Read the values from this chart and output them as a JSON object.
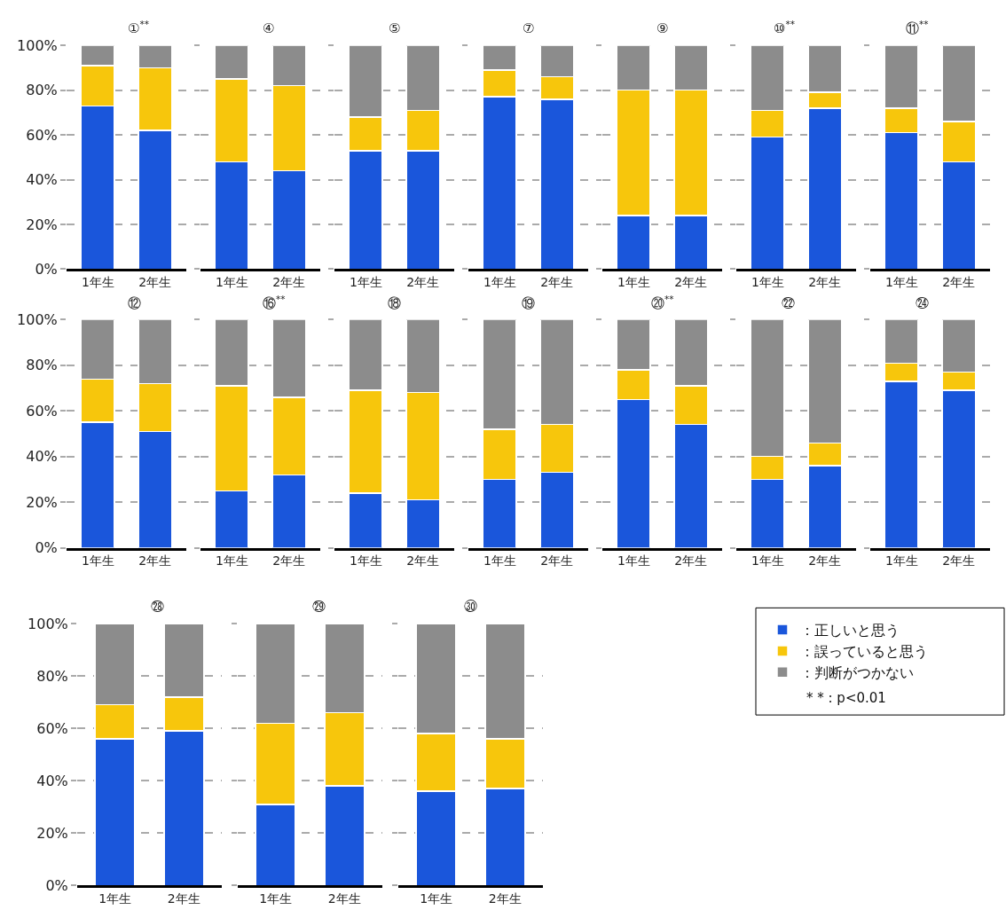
{
  "chart_data": [
    {
      "type": "bar",
      "title": "①$^{**}$",
      "categories": [
        "1年生",
        "2年生"
      ],
      "stacked": true,
      "ylim": [
        0,
        100
      ],
      "yticks": [
        {
          "value": 0,
          "label": "0%"
        },
        {
          "value": 20,
          "label": "20%"
        },
        {
          "value": 40,
          "label": "40%"
        },
        {
          "value": 60,
          "label": "60%"
        },
        {
          "value": 80,
          "label": "80%"
        },
        {
          "value": 100,
          "label": "100%"
        }
      ],
      "grid": "y",
      "series": [
        {
          "color": "#1a56db",
          "values": [
            73,
            62
          ]
        },
        {
          "color": "#f7c60c",
          "values": [
            18,
            28
          ]
        },
        {
          "color": "#8c8c8c",
          "values": [
            9,
            10
          ]
        }
      ]
    },
    {
      "type": "bar",
      "title": "④",
      "categories": [
        "1年生",
        "2年生"
      ],
      "stacked": true,
      "ylim": [
        0,
        100
      ],
      "yticks": [
        0,
        20,
        40,
        60,
        80,
        100
      ],
      "grid": "y",
      "tick_labels": "x",
      "series": [
        {
          "color": "#1a56db",
          "values": [
            48,
            44
          ]
        },
        {
          "color": "#f7c60c",
          "values": [
            37,
            38
          ]
        },
        {
          "color": "#8c8c8c",
          "values": [
            15,
            18
          ]
        }
      ]
    },
    {
      "type": "bar",
      "title": "⑤",
      "categories": [
        "1年生",
        "2年生"
      ],
      "stacked": true,
      "ylim": [
        0,
        100
      ],
      "yticks": [
        0,
        20,
        40,
        60,
        80,
        100
      ],
      "grid": "y",
      "tick_labels": "x",
      "series": [
        {
          "color": "#1a56db",
          "values": [
            53,
            53
          ]
        },
        {
          "color": "#f7c60c",
          "values": [
            15,
            18
          ]
        },
        {
          "color": "#8c8c8c",
          "values": [
            32,
            29
          ]
        }
      ]
    },
    {
      "type": "bar",
      "title": "⑦",
      "categories": [
        "1年生",
        "2年生"
      ],
      "stacked": true,
      "ylim": [
        0,
        100
      ],
      "yticks": [
        0,
        20,
        40,
        60,
        80,
        100
      ],
      "grid": "y",
      "tick_labels": "x",
      "series": [
        {
          "color": "#1a56db",
          "values": [
            77,
            76
          ]
        },
        {
          "color": "#f7c60c",
          "values": [
            12,
            10
          ]
        },
        {
          "color": "#8c8c8c",
          "values": [
            11,
            14
          ]
        }
      ]
    },
    {
      "type": "bar",
      "title": "⑨",
      "categories": [
        "1年生",
        "2年生"
      ],
      "stacked": true,
      "ylim": [
        0,
        100
      ],
      "yticks": [
        0,
        20,
        40,
        60,
        80,
        100
      ],
      "grid": "y",
      "tick_labels": "x",
      "series": [
        {
          "color": "#1a56db",
          "values": [
            24,
            24
          ]
        },
        {
          "color": "#f7c60c",
          "values": [
            56,
            56
          ]
        },
        {
          "color": "#8c8c8c",
          "values": [
            20,
            20
          ]
        }
      ]
    },
    {
      "type": "bar",
      "title": "⑩$^{**}$",
      "categories": [
        "1年生",
        "2年生"
      ],
      "stacked": true,
      "ylim": [
        0,
        100
      ],
      "yticks": [
        0,
        20,
        40,
        60,
        80,
        100
      ],
      "grid": "y",
      "tick_labels": "x",
      "series": [
        {
          "color": "#1a56db",
          "values": [
            59,
            72
          ]
        },
        {
          "color": "#f7c60c",
          "values": [
            12,
            7
          ]
        },
        {
          "color": "#8c8c8c",
          "values": [
            29,
            21
          ]
        }
      ]
    },
    {
      "type": "bar",
      "title": "⑪$^{**}$",
      "categories": [
        "1年生",
        "2年生"
      ],
      "stacked": true,
      "ylim": [
        0,
        100
      ],
      "yticks": [
        0,
        20,
        40,
        60,
        80,
        100
      ],
      "grid": "y",
      "tick_labels": "x",
      "series": [
        {
          "color": "#1a56db",
          "values": [
            61,
            48
          ]
        },
        {
          "color": "#f7c60c",
          "values": [
            11,
            18
          ]
        },
        {
          "color": "#8c8c8c",
          "values": [
            28,
            34
          ]
        }
      ]
    },
    {
      "type": "bar",
      "title": "⑫",
      "categories": [
        "1年生",
        "2年生"
      ],
      "stacked": true,
      "ylim": [
        0,
        100
      ],
      "yticks": [
        {
          "value": 0,
          "label": "0%"
        },
        {
          "value": 20,
          "label": "20%"
        },
        {
          "value": 40,
          "label": "40%"
        },
        {
          "value": 60,
          "label": "60%"
        },
        {
          "value": 80,
          "label": "80%"
        },
        {
          "value": 100,
          "label": "100%"
        }
      ],
      "grid": "y",
      "series": [
        {
          "color": "#1a56db",
          "values": [
            55,
            51
          ]
        },
        {
          "color": "#f7c60c",
          "values": [
            19,
            21
          ]
        },
        {
          "color": "#8c8c8c",
          "values": [
            26,
            28
          ]
        }
      ]
    },
    {
      "type": "bar",
      "title": "⑯$^{**}$",
      "categories": [
        "1年生",
        "2年生"
      ],
      "stacked": true,
      "ylim": [
        0,
        100
      ],
      "yticks": [
        0,
        20,
        40,
        60,
        80,
        100
      ],
      "grid": "y",
      "tick_labels": "x",
      "series": [
        {
          "color": "#1a56db",
          "values": [
            25,
            32
          ]
        },
        {
          "color": "#f7c60c",
          "values": [
            46,
            34
          ]
        },
        {
          "color": "#8c8c8c",
          "values": [
            29,
            34
          ]
        }
      ]
    },
    {
      "type": "bar",
      "title": "⑱",
      "categories": [
        "1年生",
        "2年生"
      ],
      "stacked": true,
      "ylim": [
        0,
        100
      ],
      "yticks": [
        0,
        20,
        40,
        60,
        80,
        100
      ],
      "grid": "y",
      "tick_labels": "x",
      "series": [
        {
          "color": "#1a56db",
          "values": [
            24,
            21
          ]
        },
        {
          "color": "#f7c60c",
          "values": [
            45,
            47
          ]
        },
        {
          "color": "#8c8c8c",
          "values": [
            31,
            32
          ]
        }
      ]
    },
    {
      "type": "bar",
      "title": "⑲",
      "categories": [
        "1年生",
        "2年生"
      ],
      "stacked": true,
      "ylim": [
        0,
        100
      ],
      "yticks": [
        0,
        20,
        40,
        60,
        80,
        100
      ],
      "grid": "y",
      "tick_labels": "x",
      "series": [
        {
          "color": "#1a56db",
          "values": [
            30,
            33
          ]
        },
        {
          "color": "#f7c60c",
          "values": [
            22,
            21
          ]
        },
        {
          "color": "#8c8c8c",
          "values": [
            48,
            46
          ]
        }
      ]
    },
    {
      "type": "bar",
      "title": "⑳$^{**}$",
      "categories": [
        "1年生",
        "2年生"
      ],
      "stacked": true,
      "ylim": [
        0,
        100
      ],
      "yticks": [
        0,
        20,
        40,
        60,
        80,
        100
      ],
      "grid": "y",
      "tick_labels": "x",
      "series": [
        {
          "color": "#1a56db",
          "values": [
            65,
            54
          ]
        },
        {
          "color": "#f7c60c",
          "values": [
            13,
            17
          ]
        },
        {
          "color": "#8c8c8c",
          "values": [
            22,
            29
          ]
        }
      ]
    },
    {
      "type": "bar",
      "title": "㉒",
      "categories": [
        "1年生",
        "2年生"
      ],
      "stacked": true,
      "ylim": [
        0,
        100
      ],
      "yticks": [
        0,
        20,
        40,
        60,
        80,
        100
      ],
      "grid": "y",
      "tick_labels": "x",
      "series": [
        {
          "color": "#1a56db",
          "values": [
            30,
            36
          ]
        },
        {
          "color": "#f7c60c",
          "values": [
            10,
            10
          ]
        },
        {
          "color": "#8c8c8c",
          "values": [
            60,
            54
          ]
        }
      ]
    },
    {
      "type": "bar",
      "title": "㉔",
      "categories": [
        "1年生",
        "2年生"
      ],
      "stacked": true,
      "ylim": [
        0,
        100
      ],
      "yticks": [
        0,
        20,
        40,
        60,
        80,
        100
      ],
      "grid": "y",
      "tick_labels": "x",
      "series": [
        {
          "color": "#1a56db",
          "values": [
            73,
            69
          ]
        },
        {
          "color": "#f7c60c",
          "values": [
            8,
            8
          ]
        },
        {
          "color": "#8c8c8c",
          "values": [
            19,
            23
          ]
        }
      ]
    },
    {
      "type": "bar",
      "title": "㉘",
      "categories": [
        "1年生",
        "2年生"
      ],
      "stacked": true,
      "ylim": [
        0,
        100
      ],
      "yticks": [
        {
          "value": 0,
          "label": "0%"
        },
        {
          "value": 20,
          "label": "20%"
        },
        {
          "value": 40,
          "label": "40%"
        },
        {
          "value": 60,
          "label": "60%"
        },
        {
          "value": 80,
          "label": "80%"
        },
        {
          "value": 100,
          "label": "100%"
        }
      ],
      "grid": "y",
      "series": [
        {
          "color": "#1a56db",
          "values": [
            56,
            59
          ]
        },
        {
          "color": "#f7c60c",
          "values": [
            13,
            13
          ]
        },
        {
          "color": "#8c8c8c",
          "values": [
            31,
            28
          ]
        }
      ]
    },
    {
      "type": "bar",
      "title": "㉙",
      "categories": [
        "1年生",
        "2年生"
      ],
      "stacked": true,
      "ylim": [
        0,
        100
      ],
      "yticks": [
        0,
        20,
        40,
        60,
        80,
        100
      ],
      "grid": "y",
      "tick_labels": "x",
      "series": [
        {
          "color": "#1a56db",
          "values": [
            31,
            38
          ]
        },
        {
          "color": "#f7c60c",
          "values": [
            31,
            28
          ]
        },
        {
          "color": "#8c8c8c",
          "values": [
            38,
            34
          ]
        }
      ]
    },
    {
      "type": "bar",
      "title": "㉚",
      "categories": [
        "1年生",
        "2年生"
      ],
      "stacked": true,
      "ylim": [
        0,
        100
      ],
      "yticks": [
        0,
        20,
        40,
        60,
        80,
        100
      ],
      "grid": "y",
      "tick_labels": "x",
      "legend": "right",
      "annotations": [
        "* * : p<0.01"
      ],
      "series": [
        {
          "name": "：正しいと思う",
          "color": "#1a56db",
          "values": [
            36,
            37
          ]
        },
        {
          "name": "：誤っていると思う",
          "color": "#f7c60c",
          "values": [
            22,
            19
          ]
        },
        {
          "name": "：判断がつかない",
          "color": "#8c8c8c",
          "values": [
            42,
            44
          ]
        }
      ]
    }
  ]
}
